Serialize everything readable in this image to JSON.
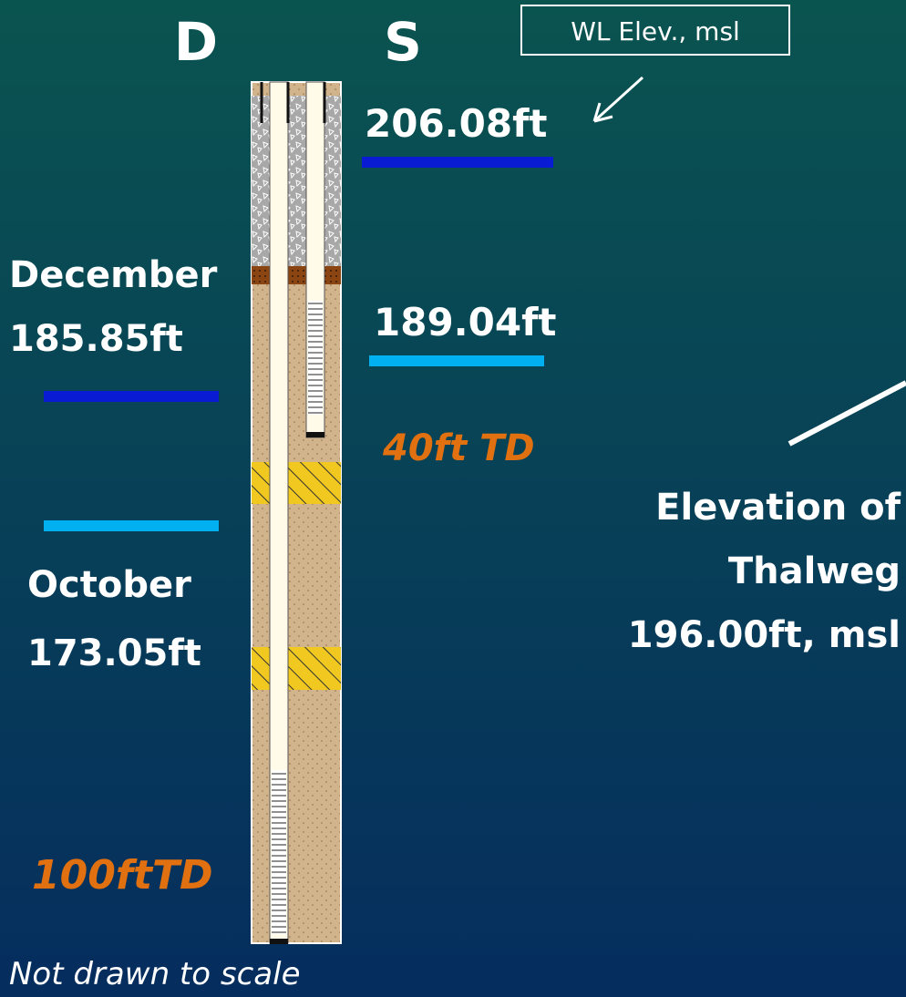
{
  "labels": {
    "d_well": "D",
    "s_well": "S",
    "wl_box": "WL Elev., msl",
    "s_dec": "206.08ft",
    "d_dec_month": "December",
    "d_dec": "185.85ft",
    "s_oct": "189.04ft",
    "s_td": "40ft TD",
    "d_oct_month": "October",
    "d_oct": "173.05ft",
    "thalweg_1": "Elevation of",
    "thalweg_2": "Thalweg",
    "thalweg_3": "196.00ft, msl",
    "d_td": "100ftTD",
    "note": "Not drawn to scale"
  }
}
